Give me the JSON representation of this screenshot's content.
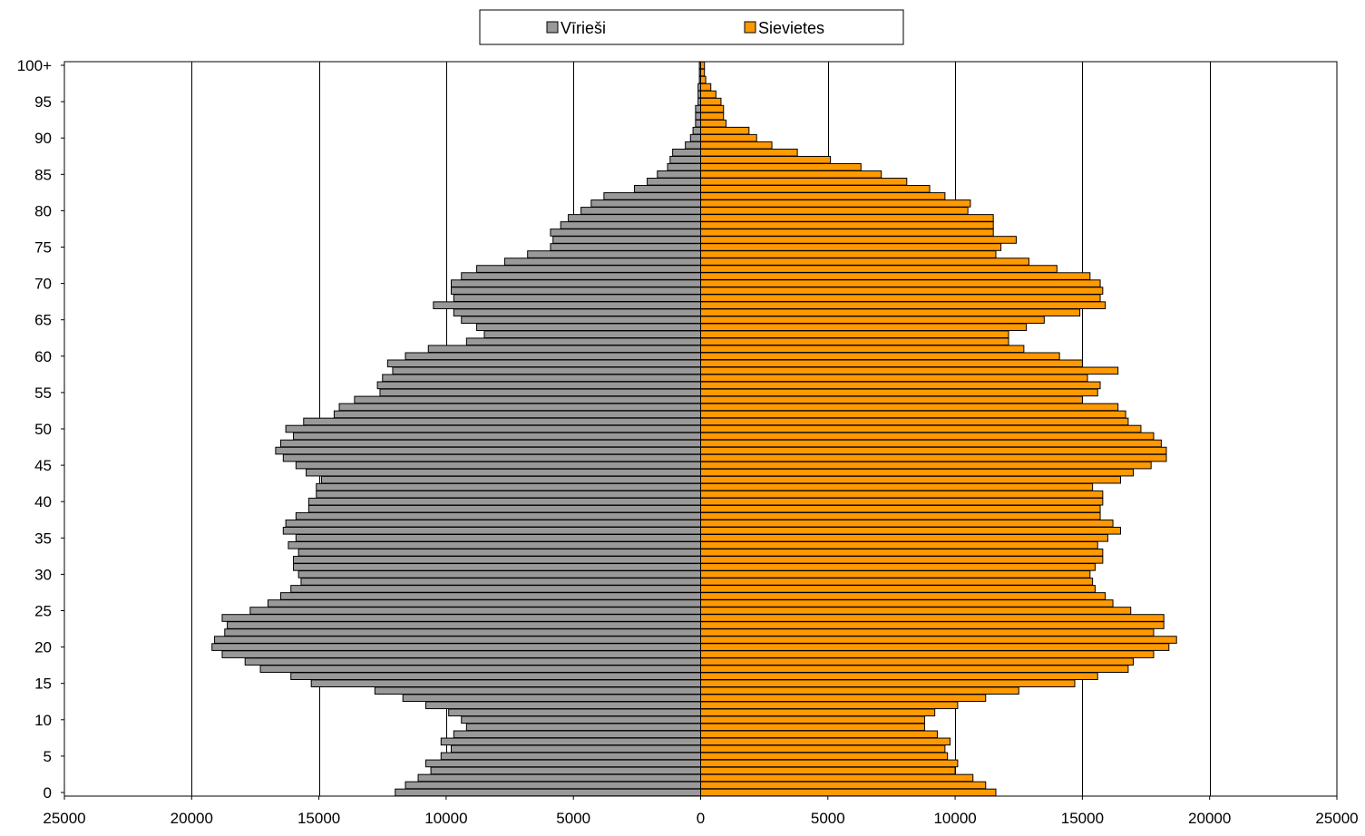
{
  "chart_data": {
    "type": "bar",
    "orientation": "horizontal-population-pyramid",
    "title": "",
    "xlabel": "",
    "ylabel": "",
    "xlim": [
      -25000,
      25000
    ],
    "x_ticks": [
      -25000,
      -20000,
      -15000,
      -10000,
      -5000,
      0,
      5000,
      10000,
      15000,
      20000,
      25000
    ],
    "x_tick_labels": [
      "25000",
      "20000",
      "15000",
      "10000",
      "5000",
      "0",
      "5000",
      "10000",
      "15000",
      "20000",
      "25000"
    ],
    "y_tick_labels": [
      "0",
      "5",
      "10",
      "15",
      "20",
      "25",
      "30",
      "35",
      "40",
      "45",
      "50",
      "55",
      "60",
      "65",
      "70",
      "75",
      "80",
      "85",
      "90",
      "95",
      "100+"
    ],
    "categories": [
      "0",
      "1",
      "2",
      "3",
      "4",
      "5",
      "6",
      "7",
      "8",
      "9",
      "10",
      "11",
      "12",
      "13",
      "14",
      "15",
      "16",
      "17",
      "18",
      "19",
      "20",
      "21",
      "22",
      "23",
      "24",
      "25",
      "26",
      "27",
      "28",
      "29",
      "30",
      "31",
      "32",
      "33",
      "34",
      "35",
      "36",
      "37",
      "38",
      "39",
      "40",
      "41",
      "42",
      "43",
      "44",
      "45",
      "46",
      "47",
      "48",
      "49",
      "50",
      "51",
      "52",
      "53",
      "54",
      "55",
      "56",
      "57",
      "58",
      "59",
      "60",
      "61",
      "62",
      "63",
      "64",
      "65",
      "66",
      "67",
      "68",
      "69",
      "70",
      "71",
      "72",
      "73",
      "74",
      "75",
      "76",
      "77",
      "78",
      "79",
      "80",
      "81",
      "82",
      "83",
      "84",
      "85",
      "86",
      "87",
      "88",
      "89",
      "90",
      "91",
      "92",
      "93",
      "94",
      "95",
      "96",
      "97",
      "98",
      "99",
      "100+"
    ],
    "grid": {
      "vertical": true,
      "horizontal": false
    },
    "legend": {
      "position": "top-center"
    },
    "series": [
      {
        "name": "Vīrieši",
        "color": "#999999",
        "side": "left",
        "values": [
          12000,
          11600,
          11100,
          10600,
          10800,
          10200,
          9800,
          10200,
          9700,
          9200,
          9400,
          9900,
          10800,
          11700,
          12800,
          15300,
          16100,
          17300,
          17900,
          18800,
          19200,
          19100,
          18700,
          18600,
          18800,
          17700,
          17000,
          16500,
          16100,
          15700,
          15800,
          16000,
          16000,
          15800,
          16200,
          15900,
          16400,
          16300,
          15900,
          15400,
          15400,
          15100,
          15100,
          14900,
          15500,
          15900,
          16400,
          16700,
          16500,
          16000,
          16300,
          15600,
          14400,
          14200,
          13600,
          12600,
          12700,
          12500,
          12100,
          12300,
          11600,
          10700,
          9200,
          8500,
          8800,
          9400,
          9700,
          10500,
          9700,
          9800,
          9800,
          9400,
          8800,
          7700,
          6800,
          5900,
          5800,
          5900,
          5500,
          5200,
          4700,
          4300,
          3800,
          2600,
          2100,
          1700,
          1300,
          1200,
          1100,
          600,
          400,
          300,
          200,
          200,
          200,
          100,
          100,
          100,
          50,
          50,
          50
        ]
      },
      {
        "name": "Sievietes",
        "color": "#ff9900",
        "side": "right",
        "values": [
          11600,
          11200,
          10700,
          10000,
          10100,
          9700,
          9600,
          9800,
          9300,
          8800,
          8800,
          9200,
          10100,
          11200,
          12500,
          14700,
          15600,
          16800,
          17000,
          17800,
          18400,
          18700,
          17800,
          18200,
          18200,
          16900,
          16200,
          15900,
          15500,
          15400,
          15300,
          15500,
          15800,
          15800,
          15600,
          16000,
          16500,
          16200,
          15700,
          15700,
          15800,
          15800,
          15400,
          16500,
          17000,
          17700,
          18300,
          18300,
          18100,
          17800,
          17300,
          16800,
          16700,
          16400,
          15000,
          15600,
          15700,
          15200,
          16400,
          15000,
          14100,
          12700,
          12100,
          12100,
          12800,
          13500,
          14900,
          15900,
          15700,
          15800,
          15700,
          15300,
          14000,
          12900,
          11600,
          11800,
          12400,
          11500,
          11500,
          11500,
          10500,
          10600,
          9600,
          9000,
          8100,
          7100,
          6300,
          5100,
          3800,
          2800,
          2200,
          1900,
          1000,
          900,
          900,
          800,
          600,
          400,
          200,
          150,
          150
        ]
      }
    ]
  }
}
